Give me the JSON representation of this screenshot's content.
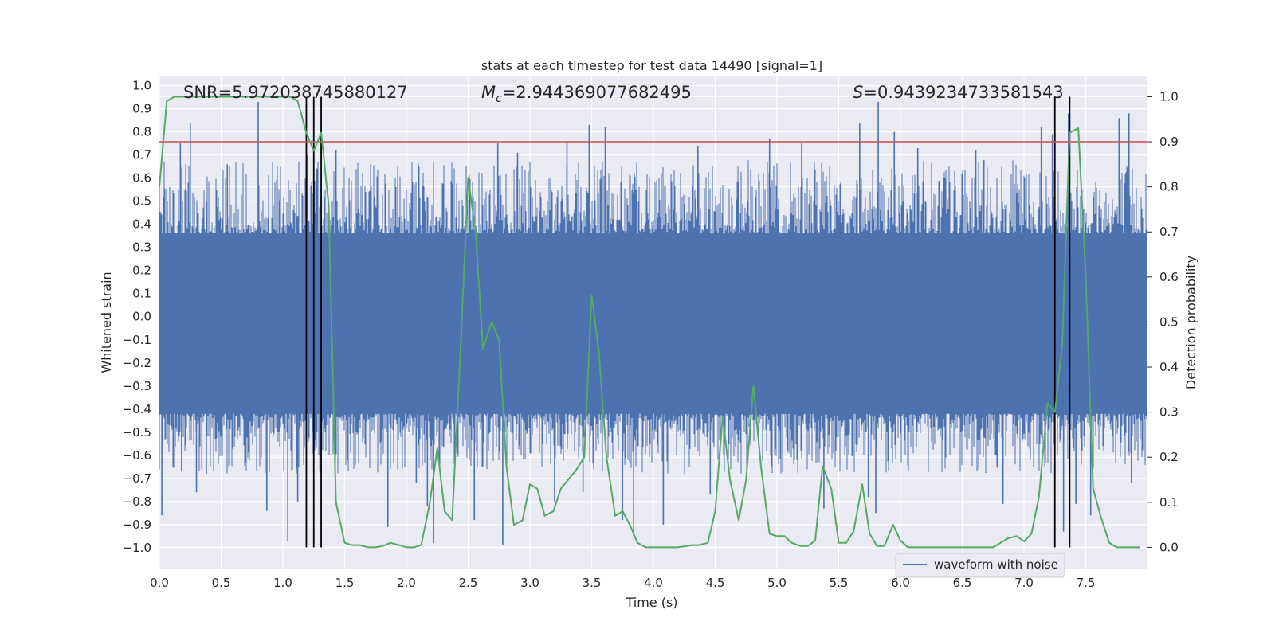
{
  "chart_data": {
    "type": "line",
    "title": "stats at each timestep for test data 14490 [signal=1]",
    "xlabel": "Time (s)",
    "ylabel": "Whitened strain",
    "y2label": "Detection probability",
    "xlim": [
      0.0,
      8.0
    ],
    "ylim": [
      -1.09,
      1.04
    ],
    "y2lim": [
      -0.047,
      1.045
    ],
    "x_ticks": [
      "0.0",
      "0.5",
      "1.0",
      "1.5",
      "2.0",
      "2.5",
      "3.0",
      "3.5",
      "4.0",
      "4.5",
      "5.0",
      "5.5",
      "6.0",
      "6.5",
      "7.0",
      "7.5"
    ],
    "y_ticks": [
      "1.0",
      "0.9",
      "0.8",
      "0.7",
      "0.6",
      "0.5",
      "0.4",
      "0.3",
      "0.2",
      "0.1",
      "0.0",
      "−0.1",
      "−0.2",
      "−0.3",
      "−0.4",
      "−0.5",
      "−0.6",
      "−0.7",
      "−0.8",
      "−0.9",
      "−1.0"
    ],
    "y2_ticks": [
      "1.0",
      "0.9",
      "0.8",
      "0.7",
      "0.6",
      "0.5",
      "0.4",
      "0.3",
      "0.2",
      "0.1",
      "0.0"
    ],
    "grid": true,
    "legend": {
      "location": "bottom-right",
      "entries": [
        "waveform with noise"
      ]
    },
    "annotations": {
      "snr": "SNR=5.972038745880127",
      "mc_symbol": "M",
      "mc_sub": "c",
      "mc_value": "=2.944369077682495",
      "s_symbol": "S",
      "s_value": "=0.9439234733581543"
    },
    "threshold": {
      "value": 0.9,
      "axis": "right",
      "color": "#c44e52"
    },
    "vertical_lines": [
      1.19,
      1.25,
      1.31,
      7.25,
      7.37
    ],
    "series": [
      {
        "name": "waveform with noise",
        "axis": "left",
        "color": "#4c72b0",
        "band_core": [
          -0.42,
          0.36
        ],
        "noise_envelope": [
          -0.68,
          0.68
        ],
        "spikes": [
          {
            "x": 0.02,
            "y": -0.86
          },
          {
            "x": 0.17,
            "y": 0.75
          },
          {
            "x": 0.18,
            "y": -0.67
          },
          {
            "x": 0.25,
            "y": 0.84
          },
          {
            "x": 0.3,
            "y": -0.76
          },
          {
            "x": 0.38,
            "y": -0.68
          },
          {
            "x": 0.55,
            "y": 0.66
          },
          {
            "x": 0.8,
            "y": 0.93
          },
          {
            "x": 0.87,
            "y": -0.84
          },
          {
            "x": 1.04,
            "y": -0.97
          },
          {
            "x": 1.12,
            "y": -0.8
          },
          {
            "x": 1.2,
            "y": 0.7
          },
          {
            "x": 1.27,
            "y": 0.64
          },
          {
            "x": 1.3,
            "y": -0.67
          },
          {
            "x": 1.43,
            "y": 0.72
          },
          {
            "x": 1.85,
            "y": -0.91
          },
          {
            "x": 2.08,
            "y": -0.72
          },
          {
            "x": 2.17,
            "y": -0.82
          },
          {
            "x": 2.22,
            "y": -0.98
          },
          {
            "x": 2.55,
            "y": -0.88
          },
          {
            "x": 2.74,
            "y": 0.75
          },
          {
            "x": 2.78,
            "y": -0.99
          },
          {
            "x": 2.9,
            "y": 0.71
          },
          {
            "x": 3.2,
            "y": -0.8
          },
          {
            "x": 3.3,
            "y": 0.76
          },
          {
            "x": 3.43,
            "y": -0.76
          },
          {
            "x": 3.48,
            "y": 0.83
          },
          {
            "x": 3.61,
            "y": 0.82
          },
          {
            "x": 3.75,
            "y": -0.88
          },
          {
            "x": 3.84,
            "y": -0.95
          },
          {
            "x": 4.08,
            "y": -0.9
          },
          {
            "x": 4.36,
            "y": 0.74
          },
          {
            "x": 4.46,
            "y": -0.77
          },
          {
            "x": 4.94,
            "y": 0.77
          },
          {
            "x": 5.2,
            "y": 0.75
          },
          {
            "x": 5.38,
            "y": -0.83
          },
          {
            "x": 5.67,
            "y": 0.84
          },
          {
            "x": 5.74,
            "y": -0.78
          },
          {
            "x": 5.8,
            "y": -0.85
          },
          {
            "x": 5.82,
            "y": 0.93
          },
          {
            "x": 5.95,
            "y": 0.8
          },
          {
            "x": 6.14,
            "y": 0.73
          },
          {
            "x": 6.61,
            "y": 0.72
          },
          {
            "x": 6.83,
            "y": -0.81
          },
          {
            "x": 7.14,
            "y": 0.82
          },
          {
            "x": 7.23,
            "y": 0.79
          },
          {
            "x": 7.32,
            "y": -0.93
          },
          {
            "x": 7.36,
            "y": 0.88
          },
          {
            "x": 7.42,
            "y": -0.81
          },
          {
            "x": 7.54,
            "y": -0.86
          },
          {
            "x": 7.77,
            "y": 0.86
          },
          {
            "x": 7.85,
            "y": 0.88
          },
          {
            "x": 7.87,
            "y": -0.72
          }
        ]
      },
      {
        "name": "",
        "axis": "right",
        "color": "#55a868",
        "x": [
          0.0,
          0.06,
          0.12,
          0.18,
          0.25,
          0.5,
          0.75,
          1.0,
          1.06,
          1.12,
          1.19,
          1.25,
          1.31,
          1.37,
          1.43,
          1.5,
          1.56,
          1.62,
          1.69,
          1.75,
          1.81,
          1.87,
          1.94,
          2.0,
          2.06,
          2.12,
          2.19,
          2.25,
          2.31,
          2.37,
          2.44,
          2.5,
          2.56,
          2.62,
          2.69,
          2.75,
          2.81,
          2.87,
          2.94,
          3.0,
          3.06,
          3.12,
          3.19,
          3.25,
          3.31,
          3.37,
          3.44,
          3.5,
          3.56,
          3.62,
          3.69,
          3.75,
          3.81,
          3.87,
          3.94,
          4.0,
          4.06,
          4.12,
          4.19,
          4.25,
          4.31,
          4.37,
          4.44,
          4.5,
          4.56,
          4.62,
          4.69,
          4.75,
          4.81,
          4.87,
          4.94,
          5.0,
          5.06,
          5.12,
          5.19,
          5.25,
          5.31,
          5.37,
          5.44,
          5.5,
          5.56,
          5.62,
          5.69,
          5.75,
          5.81,
          5.87,
          5.94,
          6.0,
          6.06,
          6.12,
          6.25,
          6.5,
          6.75,
          6.87,
          6.94,
          7.0,
          7.06,
          7.12,
          7.19,
          7.25,
          7.31,
          7.37,
          7.44,
          7.5,
          7.56,
          7.62,
          7.69,
          7.75,
          7.94
        ],
        "values": [
          0.8,
          0.99,
          1.0,
          1.0,
          1.0,
          1.0,
          1.0,
          1.0,
          1.0,
          0.99,
          0.92,
          0.88,
          0.92,
          0.76,
          0.1,
          0.01,
          0.005,
          0.005,
          0.0,
          0.0,
          0.003,
          0.01,
          0.005,
          0.0,
          0.0,
          0.005,
          0.1,
          0.22,
          0.08,
          0.06,
          0.45,
          0.82,
          0.7,
          0.44,
          0.5,
          0.46,
          0.18,
          0.05,
          0.06,
          0.14,
          0.13,
          0.07,
          0.08,
          0.13,
          0.15,
          0.17,
          0.2,
          0.56,
          0.43,
          0.2,
          0.07,
          0.08,
          0.05,
          0.01,
          0.0,
          0.0,
          0.0,
          0.0,
          0.0,
          0.002,
          0.005,
          0.005,
          0.01,
          0.08,
          0.29,
          0.15,
          0.06,
          0.15,
          0.36,
          0.18,
          0.03,
          0.025,
          0.025,
          0.01,
          0.003,
          0.003,
          0.015,
          0.18,
          0.13,
          0.01,
          0.01,
          0.035,
          0.14,
          0.03,
          0.003,
          0.003,
          0.05,
          0.015,
          0.0,
          0.0,
          0.0,
          0.0,
          0.0,
          0.02,
          0.025,
          0.013,
          0.03,
          0.11,
          0.32,
          0.3,
          0.45,
          0.92,
          0.93,
          0.6,
          0.13,
          0.07,
          0.01,
          0.0,
          0.0
        ]
      }
    ]
  }
}
